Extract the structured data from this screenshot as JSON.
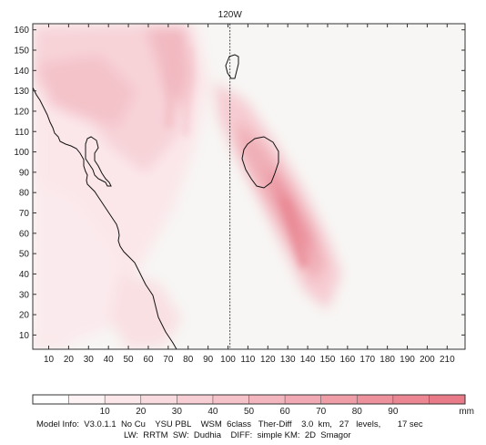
{
  "map": {
    "meridian_label": "120W",
    "x_ticks": [
      "10",
      "20",
      "30",
      "40",
      "50",
      "60",
      "70",
      "80",
      "90",
      "100",
      "110",
      "120",
      "130",
      "140",
      "150",
      "160",
      "170",
      "180",
      "190",
      "200",
      "210"
    ],
    "x_tick_values": [
      10,
      20,
      30,
      40,
      50,
      60,
      70,
      80,
      90,
      100,
      110,
      120,
      130,
      140,
      150,
      160,
      170,
      180,
      190,
      200,
      210
    ],
    "y_ticks": [
      "10",
      "20",
      "30",
      "40",
      "50",
      "60",
      "70",
      "80",
      "90",
      "100",
      "110",
      "120",
      "130",
      "140",
      "150",
      "160"
    ],
    "y_tick_values": [
      10,
      20,
      30,
      40,
      50,
      60,
      70,
      80,
      90,
      100,
      110,
      120,
      130,
      140,
      150,
      160
    ],
    "x_range": [
      2,
      219
    ],
    "y_range": [
      3,
      163
    ],
    "meridian_x": 101,
    "colors": {
      "background": "#f7f6f4",
      "shade_light": "#f7d6da",
      "shade_mid": "#f0aeb6",
      "shade_strong": "#e88491",
      "coastline": "#111111"
    }
  },
  "colorbar": {
    "labels": [
      "10",
      "20",
      "30",
      "40",
      "50",
      "60",
      "70",
      "80",
      "90"
    ],
    "values": [
      10,
      20,
      30,
      40,
      50,
      60,
      70,
      80,
      90
    ],
    "unit": "mm",
    "range": [
      0,
      100
    ],
    "colors": [
      "#ffffff",
      "#fdf3f4",
      "#fbe7ea",
      "#f9dbdf",
      "#f7ced4",
      "#f5c2c9",
      "#f3b6be",
      "#f1aab3",
      "#ef9ea8",
      "#ed929d",
      "#eb8692",
      "#e97a87"
    ]
  },
  "footer": {
    "line1": "Model Info:  V3.0.1.1  No Cu    YSU PBL    WSM  6class   Ther-Diff    3.0  km,   27   levels,       17 sec",
    "line2": "LW:  RRTM  SW:  Dudhia    DIFF:  simple KM:  2D  Smagor"
  }
}
